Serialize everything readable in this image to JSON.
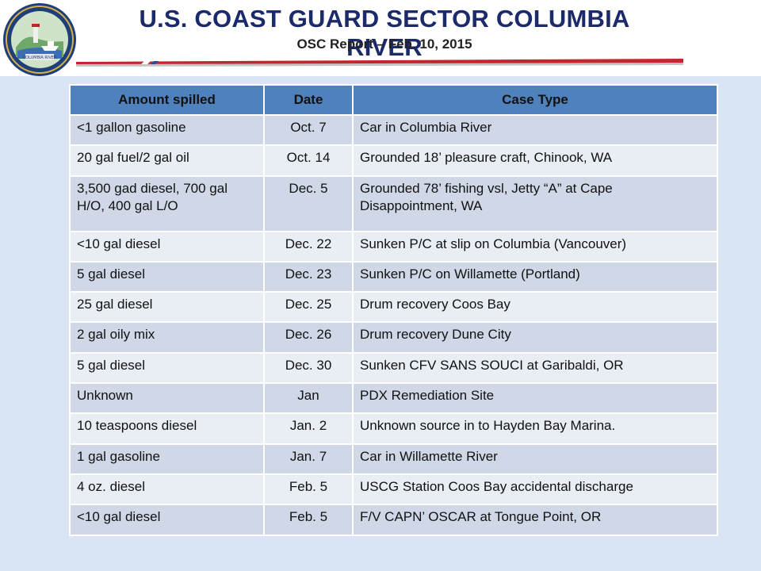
{
  "header": {
    "title": "U.S. COAST GUARD SECTOR COLUMBIA RIVER",
    "subtitle": "OSC Report – Feb. 10, 2015",
    "seal_text": "COLUMBIA RIVER",
    "accent_color": "#c1272d",
    "title_color": "#1b2a6b"
  },
  "table": {
    "columns": [
      "Amount spilled",
      "Date",
      "Case Type"
    ],
    "rows": [
      [
        "<1 gallon gasoline",
        "Oct. 7",
        "Car in Columbia River"
      ],
      [
        "20 gal fuel/2 gal oil",
        "Oct. 14",
        "Grounded 18’ pleasure craft, Chinook, WA"
      ],
      [
        "3,500 gad diesel, 700 gal  H/O, 400 gal L/O",
        "Dec. 5",
        "Grounded 78’ fishing vsl,  Jetty “A” at Cape Disappointment, WA"
      ],
      [
        "<10 gal diesel",
        "Dec. 22",
        "Sunken P/C at slip on Columbia (Vancouver)"
      ],
      [
        "5 gal diesel",
        "Dec. 23",
        "Sunken P/C on Willamette (Portland)"
      ],
      [
        "25 gal diesel",
        "Dec. 25",
        "Drum recovery Coos Bay"
      ],
      [
        "2 gal oily mix",
        "Dec. 26",
        "Drum recovery Dune City"
      ],
      [
        "5 gal diesel",
        "Dec. 30",
        "Sunken CFV SANS SOUCI at Garibaldi, OR"
      ],
      [
        "Unknown",
        "Jan",
        "PDX Remediation Site"
      ],
      [
        "10 teaspoons diesel",
        "Jan. 2",
        "Unknown source in to Hayden Bay Marina."
      ],
      [
        "1 gal gasoline",
        "Jan. 7",
        "Car in Willamette River"
      ],
      [
        "4 oz. diesel",
        "Feb. 5",
        "USCG Station Coos Bay accidental discharge"
      ],
      [
        "<10 gal diesel",
        "Feb. 5",
        "F/V CAPN’ OSCAR at Tongue Point, OR"
      ]
    ]
  }
}
